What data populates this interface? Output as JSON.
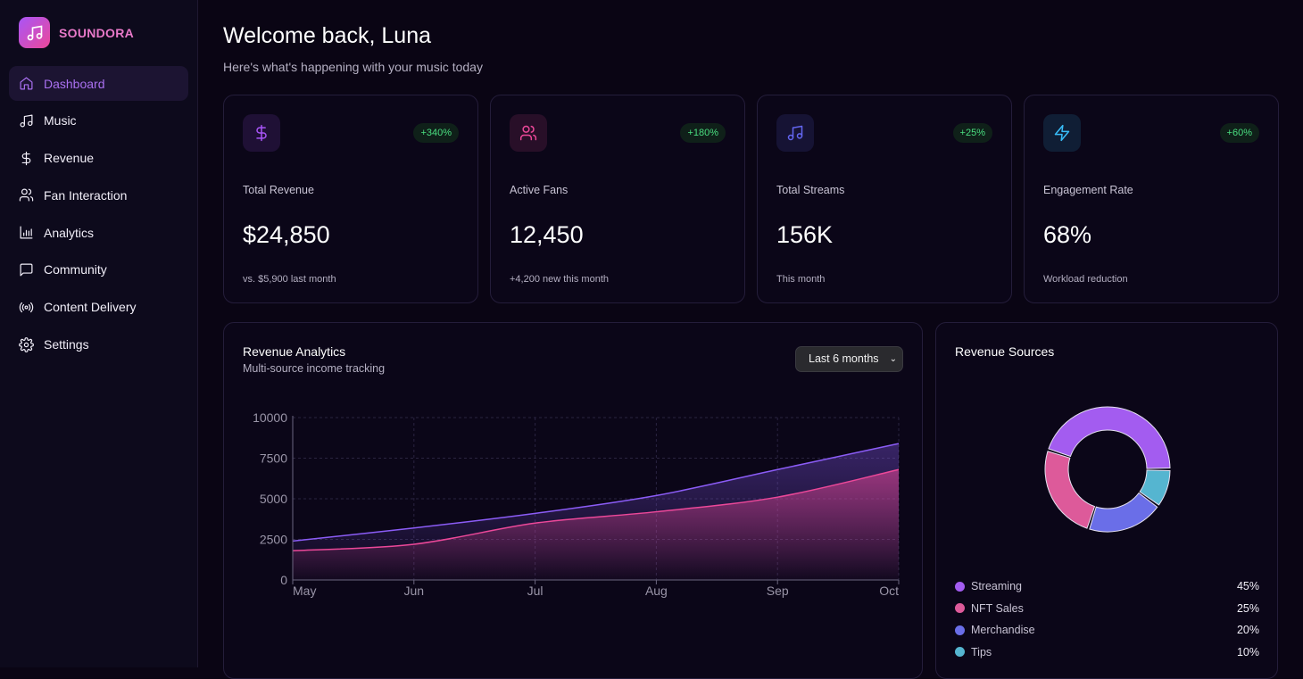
{
  "brand": {
    "name": "SOUNDORA",
    "icon": "music-note-icon"
  },
  "sidebar": {
    "items": [
      {
        "label": "Dashboard",
        "icon": "home-icon",
        "active": true
      },
      {
        "label": "Music",
        "icon": "music-icon"
      },
      {
        "label": "Revenue",
        "icon": "dollar-icon"
      },
      {
        "label": "Fan Interaction",
        "icon": "users-icon"
      },
      {
        "label": "Analytics",
        "icon": "bar-chart-icon"
      },
      {
        "label": "Community",
        "icon": "message-icon"
      },
      {
        "label": "Content Delivery",
        "icon": "broadcast-icon"
      },
      {
        "label": "Settings",
        "icon": "gear-icon"
      }
    ]
  },
  "header": {
    "title": "Welcome back, Luna",
    "subtitle": "Here's what's happening with your music today"
  },
  "stats": [
    {
      "label": "Total Revenue",
      "value": "$24,850",
      "change": "+340%",
      "sub": "vs. $5,900 last month",
      "icon": "dollar-icon",
      "color": "#a855f7"
    },
    {
      "label": "Active Fans",
      "value": "12,450",
      "change": "+180%",
      "sub": "+4,200 new this month",
      "icon": "users-icon",
      "color": "#ec4899"
    },
    {
      "label": "Total Streams",
      "value": "156K",
      "change": "+25%",
      "sub": "This month",
      "icon": "music-icon",
      "color": "#6366f1"
    },
    {
      "label": "Engagement Rate",
      "value": "68%",
      "change": "+60%",
      "sub": "Workload reduction",
      "icon": "zap-icon",
      "color": "#38bdf8"
    }
  ],
  "revenue": {
    "title": "Revenue Analytics",
    "subtitle": "Multi-source income tracking",
    "range": "Last 6 months"
  },
  "sources": {
    "title": "Revenue Sources"
  },
  "chart_data": [
    {
      "type": "area",
      "categories": [
        "May",
        "Jun",
        "Jul",
        "Aug",
        "Sep",
        "Oct"
      ],
      "ylim": [
        0,
        10000
      ],
      "yticks": [
        "0",
        "2500",
        "5000",
        "7500",
        "10000"
      ],
      "grid": true,
      "series": [
        {
          "values": [
            2400,
            3200,
            4100,
            5200,
            6800,
            8400
          ],
          "color": "#8b5cf6"
        },
        {
          "values": [
            1800,
            2200,
            3500,
            4200,
            5100,
            6800
          ],
          "color": "#ec4899"
        }
      ]
    },
    {
      "type": "pie",
      "donut": true,
      "legend": "bottom",
      "categories": [
        "Streaming",
        "NFT Sales",
        "Merchandise",
        "Tips"
      ],
      "values": [
        45,
        25,
        20,
        10
      ],
      "labels": [
        "45%",
        "25%",
        "20%",
        "10%"
      ],
      "colors": [
        "#a35cf0",
        "#dd5a9a",
        "#6a6ee8",
        "#55b5d0"
      ]
    }
  ]
}
